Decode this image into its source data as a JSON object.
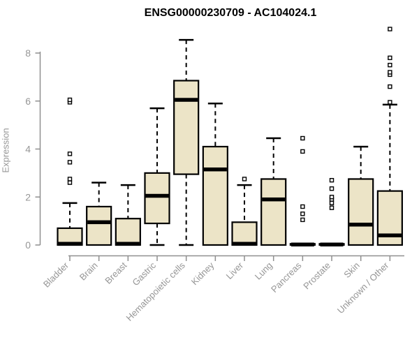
{
  "chart_data": {
    "type": "boxplot",
    "title": "ENSG00000230709 - AC104024.1",
    "ylabel": "Expression",
    "xlabel": "",
    "ylim": [
      0,
      9.2
    ],
    "yticks": [
      0,
      2,
      4,
      6,
      8
    ],
    "grid": false,
    "legend": "none",
    "colors": {
      "box_fill": "#ece4c7",
      "box_stroke": "#000000",
      "median_color": "#000000",
      "whisker_color": "#000000",
      "outlier_fill": "#ffffff",
      "outlier_stroke": "#000000",
      "axis_color": "#8f8f8f",
      "tick_label_color": "#969696",
      "title_color": "#000000",
      "background": "#ffffff"
    },
    "categories": [
      "Bladder",
      "Brain",
      "Breast",
      "Gastric",
      "Hematopoietic cells",
      "Kidney",
      "Liver",
      "Lung",
      "Pancreas",
      "Prostate",
      "Skin",
      "Unknown / Other"
    ],
    "series": [
      {
        "category": "Bladder",
        "q1": 0,
        "median": 0.05,
        "q3": 0.7,
        "whisker_low": 0,
        "whisker_high": 1.75,
        "outliers": [
          2.6,
          2.75,
          3.45,
          3.8,
          5.95,
          6.05
        ]
      },
      {
        "category": "Brain",
        "q1": 0,
        "median": 0.95,
        "q3": 1.6,
        "whisker_low": 0,
        "whisker_high": 2.6,
        "outliers": []
      },
      {
        "category": "Breast",
        "q1": 0,
        "median": 0.05,
        "q3": 1.1,
        "whisker_low": 0,
        "whisker_high": 2.5,
        "outliers": []
      },
      {
        "category": "Gastric",
        "q1": 0.9,
        "median": 2.05,
        "q3": 3.0,
        "whisker_low": 0,
        "whisker_high": 5.7,
        "outliers": []
      },
      {
        "category": "Hematopoietic cells",
        "q1": 2.95,
        "median": 6.05,
        "q3": 6.85,
        "whisker_low": 0,
        "whisker_high": 8.55,
        "outliers": []
      },
      {
        "category": "Kidney",
        "q1": 0,
        "median": 3.15,
        "q3": 4.1,
        "whisker_low": 0,
        "whisker_high": 5.9,
        "outliers": []
      },
      {
        "category": "Liver",
        "q1": 0,
        "median": 0.05,
        "q3": 0.95,
        "whisker_low": 0,
        "whisker_high": 2.5,
        "outliers": [
          2.75
        ]
      },
      {
        "category": "Lung",
        "q1": 0,
        "median": 1.9,
        "q3": 2.75,
        "whisker_low": 0,
        "whisker_high": 4.45,
        "outliers": []
      },
      {
        "category": "Pancreas",
        "q1": 0,
        "median": 0.02,
        "q3": 0.05,
        "whisker_low": 0,
        "whisker_high": 0.05,
        "outliers": [
          1.05,
          1.3,
          1.6,
          3.9,
          4.45
        ]
      },
      {
        "category": "Prostate",
        "q1": 0,
        "median": 0.02,
        "q3": 0.05,
        "whisker_low": 0,
        "whisker_high": 0.05,
        "outliers": [
          1.55,
          1.75,
          1.9,
          2.0,
          2.35,
          2.7
        ]
      },
      {
        "category": "Skin",
        "q1": 0,
        "median": 0.85,
        "q3": 2.75,
        "whisker_low": 0,
        "whisker_high": 4.1,
        "outliers": []
      },
      {
        "category": "Unknown / Other",
        "q1": 0,
        "median": 0.4,
        "q3": 2.25,
        "whisker_low": 0,
        "whisker_high": 5.85,
        "outliers": [
          5.95,
          6.6,
          7.1,
          7.2,
          7.5,
          7.8,
          9.0
        ]
      }
    ]
  }
}
